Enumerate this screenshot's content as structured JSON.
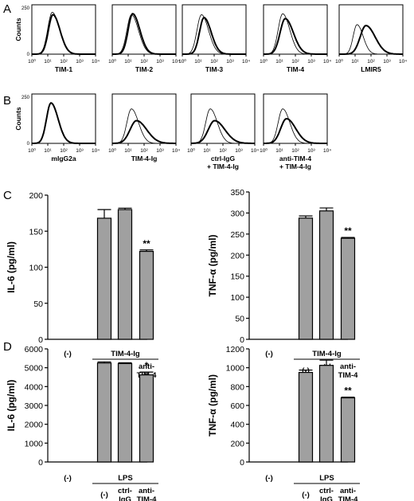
{
  "panel_letters": [
    "A",
    "B",
    "C",
    "D"
  ],
  "histograms": {
    "y_axis_label": "Counts",
    "y_ticks": [
      "0",
      "250"
    ],
    "x_ticks": [
      "10⁰",
      "10¹",
      "10²",
      "10³",
      "10⁴"
    ],
    "row_a_labels": [
      "TIM-1",
      "TIM-2",
      "TIM-3",
      "TIM-4",
      "LMIR5"
    ],
    "row_b_labels": [
      [
        "mIgG2a"
      ],
      [
        "TIM-4-Ig"
      ],
      [
        "ctrl-IgG",
        "+ TIM-4-Ig"
      ],
      [
        "anti-TIM-4",
        "+ TIM-4-Ig"
      ]
    ]
  },
  "colors": {
    "bar": "#a0a0a0",
    "line": "#000000"
  },
  "chart_data": [
    {
      "panel": "C",
      "type": "bar",
      "ylabel": "IL-6 (pg/ml)",
      "ylim": [
        0,
        200
      ],
      "yticks": [
        "0",
        "50",
        "100",
        "150",
        "200"
      ],
      "categories": [
        "(-)",
        "(-)",
        "ctrl-IgG",
        "anti-TIM-4"
      ],
      "values": [
        0,
        168,
        180,
        122
      ],
      "errors": [
        0,
        12,
        2,
        2
      ],
      "annotations": [
        "",
        "",
        "",
        "**"
      ],
      "group_label": "TIM-4-Ig",
      "tick_labels": [
        [
          "(-)"
        ],
        [
          "(-)"
        ],
        [
          "ctrl-",
          "IgG"
        ],
        [
          "anti-",
          "TIM-4"
        ]
      ]
    },
    {
      "panel": "C",
      "type": "bar",
      "ylabel": "TNF-α (pg/ml)",
      "ylim": [
        0,
        350
      ],
      "yticks": [
        "0",
        "50",
        "100",
        "150",
        "200",
        "250",
        "300",
        "350"
      ],
      "categories": [
        "(-)",
        "(-)",
        "ctrl-IgG",
        "anti-TIM-4"
      ],
      "values": [
        0,
        288,
        305,
        240
      ],
      "errors": [
        0,
        5,
        7,
        2
      ],
      "annotations": [
        "",
        "",
        "",
        "**"
      ],
      "group_label": "TIM-4-Ig",
      "tick_labels": [
        [
          "(-)"
        ],
        [
          "(-)"
        ],
        [
          "ctrl-",
          "IgG"
        ],
        [
          "anti-",
          "TIM-4"
        ]
      ]
    },
    {
      "panel": "D",
      "type": "bar",
      "ylabel": "IL-6 (pg/ml)",
      "ylim": [
        0,
        6000
      ],
      "yticks": [
        "0",
        "1000",
        "2000",
        "3000",
        "4000",
        "5000",
        "6000"
      ],
      "categories": [
        "(-)",
        "(-)",
        "ctrl-IgG",
        "anti-TIM-4"
      ],
      "values": [
        0,
        5250,
        5220,
        4620
      ],
      "errors": [
        0,
        60,
        40,
        150
      ],
      "annotations": [
        "",
        "",
        "",
        "*"
      ],
      "group_label": "LPS",
      "tick_labels": [
        [
          "(-)"
        ],
        [
          "(-)"
        ],
        [
          "ctrl-",
          "IgG"
        ],
        [
          "anti-",
          "TIM-4"
        ]
      ]
    },
    {
      "panel": "D",
      "type": "bar",
      "ylabel": "TNF-α (pg/ml)",
      "ylim": [
        0,
        1200
      ],
      "yticks": [
        "0",
        "200",
        "400",
        "600",
        "800",
        "1000",
        "1200"
      ],
      "categories": [
        "(-)",
        "(-)",
        "ctrl-IgG",
        "anti-TIM-4"
      ],
      "values": [
        0,
        950,
        1025,
        680
      ],
      "errors": [
        0,
        25,
        55,
        8
      ],
      "annotations": [
        "",
        "",
        "",
        "**"
      ],
      "group_label": "LPS",
      "tick_labels": [
        [
          "(-)"
        ],
        [
          "(-)"
        ],
        [
          "ctrl-",
          "IgG"
        ],
        [
          "anti-",
          "TIM-4"
        ]
      ]
    }
  ]
}
